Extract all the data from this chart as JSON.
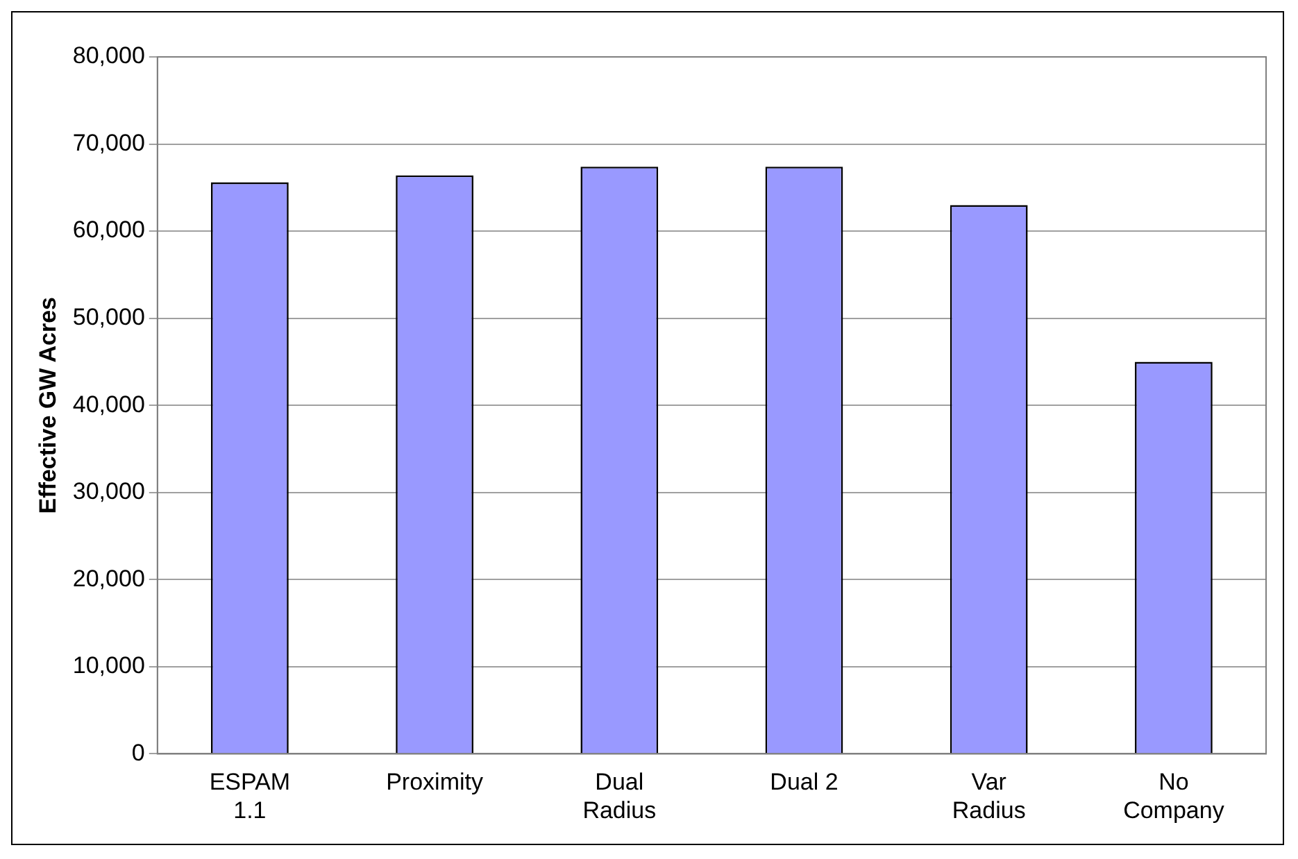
{
  "chart_data": {
    "type": "bar",
    "ylabel": "Effective GW Acres",
    "categories": [
      "ESPAM 1.1",
      "Proximity",
      "Dual Radius",
      "Dual 2",
      "Var Radius",
      "No Company"
    ],
    "values": [
      65600,
      66400,
      67400,
      67400,
      63000,
      45000
    ],
    "color": "#9999ff",
    "ylim": [
      0,
      80000
    ],
    "yticks": [
      0,
      {
        "value": 10000,
        "label": "10,000"
      },
      {
        "value": 20000,
        "label": "20,000"
      },
      {
        "value": 30000,
        "label": "30,000"
      },
      {
        "value": 40000,
        "label": "40,000"
      },
      {
        "value": 50000,
        "label": "50,000"
      },
      {
        "value": 60000,
        "label": "60,000"
      },
      {
        "value": 70000,
        "label": "70,000"
      },
      {
        "value": 80000,
        "label": "80,000"
      }
    ],
    "grid": "y",
    "legend": false
  }
}
